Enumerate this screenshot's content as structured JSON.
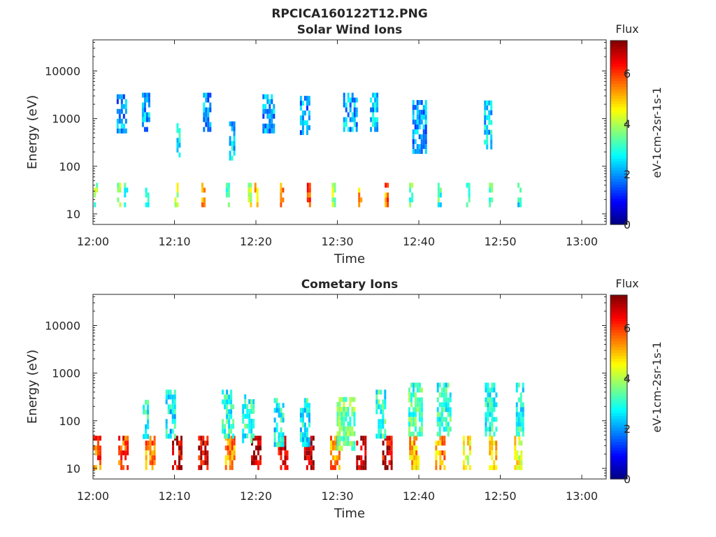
{
  "figure": {
    "title": "RPCICA160122T12.PNG"
  },
  "chart_data": [
    {
      "type": "heatmap",
      "title": "Solar Wind Ions",
      "xlabel": "Time",
      "ylabel": "Energy (eV)",
      "y_scale": "log",
      "ylim": [
        6,
        45000
      ],
      "x_ticks": [
        "12:00",
        "12:10",
        "12:20",
        "12:30",
        "12:40",
        "12:50",
        "13:00"
      ],
      "x_tick_minutes": [
        0,
        10,
        20,
        30,
        40,
        50,
        60
      ],
      "xlim_minutes": [
        0,
        63
      ],
      "y_ticks": [
        "10",
        "100",
        "1000",
        "10000"
      ],
      "y_tick_values": [
        10,
        100,
        1000,
        10000
      ],
      "colorbar": {
        "title": "Flux",
        "label": "eV-1cm-2sr-1s-1",
        "ticks": [
          "0",
          "2",
          "4",
          "6"
        ],
        "tick_values": [
          0,
          2,
          4,
          6
        ],
        "range": [
          0,
          7.3
        ],
        "colormap": "jet"
      },
      "data_coverage_minutes": [
        0,
        53
      ],
      "clusters": [
        {
          "t": 0.3,
          "e": 25,
          "v": 3.5,
          "w": 0.4,
          "h": 1.8
        },
        {
          "t": 3.2,
          "e": 25,
          "v": 3.8,
          "w": 0.5,
          "h": 1.8
        },
        {
          "t": 4.0,
          "e": 25,
          "v": 3.2,
          "w": 0.4,
          "h": 1.8
        },
        {
          "t": 6.6,
          "e": 25,
          "v": 3.0,
          "w": 0.4,
          "h": 1.8
        },
        {
          "t": 10.2,
          "e": 25,
          "v": 4.0,
          "w": 0.4,
          "h": 1.8
        },
        {
          "t": 13.5,
          "e": 25,
          "v": 5.0,
          "w": 0.4,
          "h": 1.8
        },
        {
          "t": 16.5,
          "e": 25,
          "v": 3.3,
          "w": 0.4,
          "h": 1.8
        },
        {
          "t": 19.2,
          "e": 25,
          "v": 4.2,
          "w": 0.4,
          "h": 1.8
        },
        {
          "t": 20.0,
          "e": 25,
          "v": 4.8,
          "w": 0.4,
          "h": 1.8
        },
        {
          "t": 23.2,
          "e": 25,
          "v": 5.4,
          "w": 0.5,
          "h": 1.8
        },
        {
          "t": 26.5,
          "e": 25,
          "v": 6.0,
          "w": 0.5,
          "h": 1.8
        },
        {
          "t": 29.5,
          "e": 25,
          "v": 4.0,
          "w": 0.4,
          "h": 1.8
        },
        {
          "t": 32.8,
          "e": 25,
          "v": 5.2,
          "w": 0.5,
          "h": 1.8
        },
        {
          "t": 36.0,
          "e": 25,
          "v": 5.5,
          "w": 0.4,
          "h": 1.8
        },
        {
          "t": 39.0,
          "e": 25,
          "v": 3.4,
          "w": 0.4,
          "h": 1.8
        },
        {
          "t": 42.5,
          "e": 25,
          "v": 3.0,
          "w": 0.4,
          "h": 1.8
        },
        {
          "t": 46.0,
          "e": 25,
          "v": 2.8,
          "w": 0.4,
          "h": 1.8
        },
        {
          "t": 48.8,
          "e": 25,
          "v": 3.5,
          "w": 0.4,
          "h": 1.8
        },
        {
          "t": 52.3,
          "e": 25,
          "v": 2.8,
          "w": 0.4,
          "h": 1.8
        },
        {
          "t": 3.5,
          "e": 1300,
          "v": 2.0,
          "w": 1.2,
          "h": 2.5
        },
        {
          "t": 6.5,
          "e": 1400,
          "v": 2.2,
          "w": 1.0,
          "h": 2.5
        },
        {
          "t": 10.5,
          "e": 320,
          "v": 2.5,
          "w": 0.5,
          "h": 2.5
        },
        {
          "t": 14.0,
          "e": 1400,
          "v": 2.1,
          "w": 1.0,
          "h": 2.5
        },
        {
          "t": 17.0,
          "e": 350,
          "v": 2.4,
          "w": 0.6,
          "h": 2.5
        },
        {
          "t": 21.5,
          "e": 1300,
          "v": 2.0,
          "w": 1.4,
          "h": 2.5
        },
        {
          "t": 26.0,
          "e": 1200,
          "v": 2.0,
          "w": 1.2,
          "h": 2.5
        },
        {
          "t": 31.5,
          "e": 1400,
          "v": 2.2,
          "w": 1.6,
          "h": 2.5
        },
        {
          "t": 34.5,
          "e": 1400,
          "v": 2.3,
          "w": 1.0,
          "h": 2.5
        },
        {
          "t": 40.0,
          "e": 700,
          "v": 2.0,
          "w": 1.6,
          "h": 3.5
        },
        {
          "t": 48.5,
          "e": 800,
          "v": 2.5,
          "w": 1.0,
          "h": 3.0
        }
      ]
    },
    {
      "type": "heatmap",
      "title": "Cometary Ions",
      "xlabel": "Time",
      "ylabel": "Energy (eV)",
      "y_scale": "log",
      "ylim": [
        6,
        45000
      ],
      "x_ticks": [
        "12:00",
        "12:10",
        "12:20",
        "12:30",
        "12:40",
        "12:50",
        "13:00"
      ],
      "x_tick_minutes": [
        0,
        10,
        20,
        30,
        40,
        50,
        60
      ],
      "xlim_minutes": [
        0,
        63
      ],
      "y_ticks": [
        "10",
        "100",
        "1000",
        "10000"
      ],
      "y_tick_values": [
        10,
        100,
        1000,
        10000
      ],
      "colorbar": {
        "title": "Flux",
        "label": "eV-1cm-2sr-1s-1",
        "ticks": [
          "0",
          "2",
          "4",
          "6"
        ],
        "tick_values": [
          0,
          2,
          4,
          6
        ],
        "range": [
          0,
          7.3
        ],
        "colormap": "jet"
      },
      "data_coverage_minutes": [
        0,
        53
      ],
      "clusters": [
        {
          "t": 0.5,
          "e": 22,
          "v": 5.8,
          "w": 1.0,
          "h": 2.2
        },
        {
          "t": 3.7,
          "e": 22,
          "v": 6.0,
          "w": 1.2,
          "h": 2.2
        },
        {
          "t": 7.0,
          "e": 22,
          "v": 5.5,
          "w": 1.2,
          "h": 2.2
        },
        {
          "t": 10.3,
          "e": 22,
          "v": 6.5,
          "w": 1.2,
          "h": 2.2
        },
        {
          "t": 13.5,
          "e": 22,
          "v": 6.6,
          "w": 1.2,
          "h": 2.2
        },
        {
          "t": 16.8,
          "e": 22,
          "v": 5.5,
          "w": 1.2,
          "h": 2.2
        },
        {
          "t": 20.0,
          "e": 22,
          "v": 6.8,
          "w": 1.2,
          "h": 2.2
        },
        {
          "t": 23.3,
          "e": 22,
          "v": 6.7,
          "w": 1.2,
          "h": 2.2
        },
        {
          "t": 26.5,
          "e": 22,
          "v": 7.0,
          "w": 1.2,
          "h": 2.2
        },
        {
          "t": 29.7,
          "e": 22,
          "v": 5.5,
          "w": 1.2,
          "h": 2.2
        },
        {
          "t": 32.9,
          "e": 22,
          "v": 6.8,
          "w": 1.2,
          "h": 2.2
        },
        {
          "t": 36.1,
          "e": 22,
          "v": 6.7,
          "w": 1.2,
          "h": 2.2
        },
        {
          "t": 39.4,
          "e": 22,
          "v": 5.0,
          "w": 1.2,
          "h": 2.2
        },
        {
          "t": 42.6,
          "e": 22,
          "v": 5.3,
          "w": 1.2,
          "h": 2.2
        },
        {
          "t": 45.9,
          "e": 22,
          "v": 4.5,
          "w": 1.0,
          "h": 2.2
        },
        {
          "t": 49.1,
          "e": 22,
          "v": 4.8,
          "w": 1.0,
          "h": 2.2
        },
        {
          "t": 52.2,
          "e": 22,
          "v": 4.5,
          "w": 1.0,
          "h": 2.2
        },
        {
          "t": 6.4,
          "e": 110,
          "v": 2.8,
          "w": 0.6,
          "h": 2.5
        },
        {
          "t": 9.5,
          "e": 150,
          "v": 2.7,
          "w": 1.2,
          "h": 3.0
        },
        {
          "t": 16.5,
          "e": 150,
          "v": 3.0,
          "w": 1.4,
          "h": 3.0
        },
        {
          "t": 19.0,
          "e": 120,
          "v": 3.0,
          "w": 1.4,
          "h": 3.0
        },
        {
          "t": 22.8,
          "e": 100,
          "v": 2.8,
          "w": 1.2,
          "h": 3.0
        },
        {
          "t": 26.0,
          "e": 100,
          "v": 2.8,
          "w": 1.2,
          "h": 3.0
        },
        {
          "t": 31.0,
          "e": 90,
          "v": 3.6,
          "w": 2.2,
          "h": 3.5
        },
        {
          "t": 35.3,
          "e": 150,
          "v": 3.0,
          "w": 1.2,
          "h": 3.0
        },
        {
          "t": 39.5,
          "e": 180,
          "v": 3.2,
          "w": 1.6,
          "h": 3.5
        },
        {
          "t": 43.0,
          "e": 180,
          "v": 3.0,
          "w": 1.6,
          "h": 3.5
        },
        {
          "t": 48.8,
          "e": 180,
          "v": 3.0,
          "w": 1.4,
          "h": 3.5
        },
        {
          "t": 52.4,
          "e": 180,
          "v": 2.8,
          "w": 1.0,
          "h": 3.5
        }
      ]
    }
  ]
}
